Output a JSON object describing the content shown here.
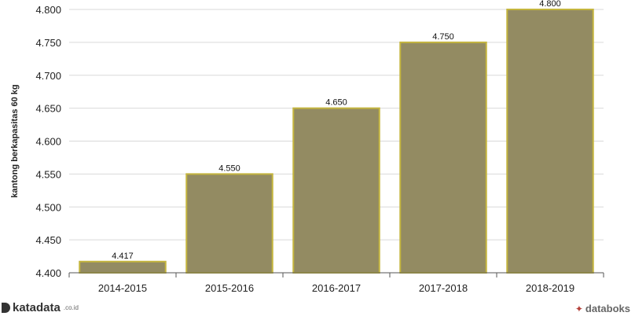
{
  "chart_data": {
    "type": "bar",
    "categories": [
      "2014-2015",
      "2015-2016",
      "2016-2017",
      "2017-2018",
      "2018-2019"
    ],
    "values": [
      4.417,
      4.55,
      4.65,
      4.75,
      4.8
    ],
    "data_labels": [
      "4.417",
      "4.550",
      "4.650",
      "4.750",
      "4.800"
    ],
    "ylabel": "kantong berkapasitas 60 kg",
    "ylim": [
      4.4,
      4.8
    ],
    "yticks": [
      "4.400",
      "4.450",
      "4.500",
      "4.550",
      "4.600",
      "4.650",
      "4.700",
      "4.750",
      "4.800"
    ],
    "ytick_values": [
      4.4,
      4.45,
      4.5,
      4.55,
      4.6,
      4.65,
      4.7,
      4.75,
      4.8
    ],
    "grid": true,
    "bar_color": "#938b62",
    "bar_border_color": "#c4b53e"
  },
  "footer": {
    "left_brand": "katadata",
    "left_suffix": ".co.id",
    "right_brand": "databoks"
  }
}
